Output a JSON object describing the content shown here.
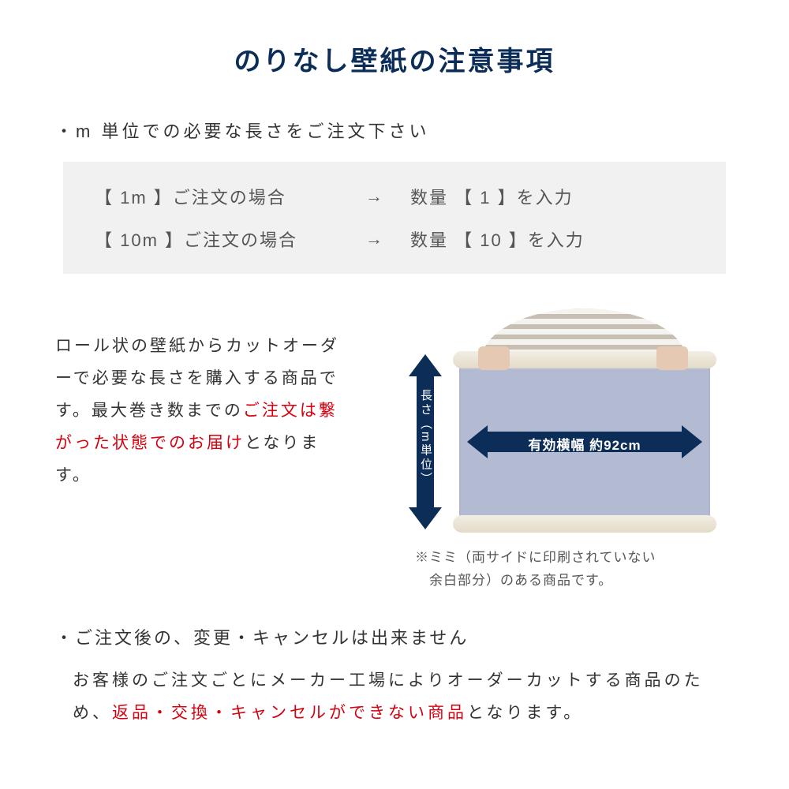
{
  "colors": {
    "navy": "#0c2d58",
    "red": "#d7000f",
    "text": "#333333",
    "subtext": "#555555",
    "example_bg": "#f1f1f1",
    "paper_fill": "#b3bbd3",
    "roll_bar": "#e8e1d0"
  },
  "title": "のりなし壁紙の注意事項",
  "bullet1": "・m 単位での必要な長さをご注文下さい",
  "examples": [
    {
      "left": "【 1m 】ご注文の場合",
      "arrow": "→",
      "right": "数量 【 1 】を入力"
    },
    {
      "left": "【 10m 】ご注文の場合",
      "arrow": "→",
      "right": "数量 【 10 】を入力"
    }
  ],
  "mid_text": {
    "p1": "ロール状の壁紙からカットオーダーで必要な長さを購入する商品です。最大巻き数までの",
    "p1_red": "ご注文は繋がった状態でのお届け",
    "p1_tail": "となります。"
  },
  "diagram": {
    "v_label": "長さ（m単位）",
    "h_label": "有効横幅 約92cm",
    "note_l1": "※ミミ（両サイドに印刷されていない",
    "note_l2": "　余白部分）のある商品です。"
  },
  "section2": {
    "title": "・ご注文後の、変更・キャンセルは出来ません",
    "body_pre": "お客様のご注文ごとにメーカー工場によりオーダーカットする商品のため、",
    "body_red": "返品・交換・キャンセルができない商品",
    "body_tail": "となります。"
  }
}
